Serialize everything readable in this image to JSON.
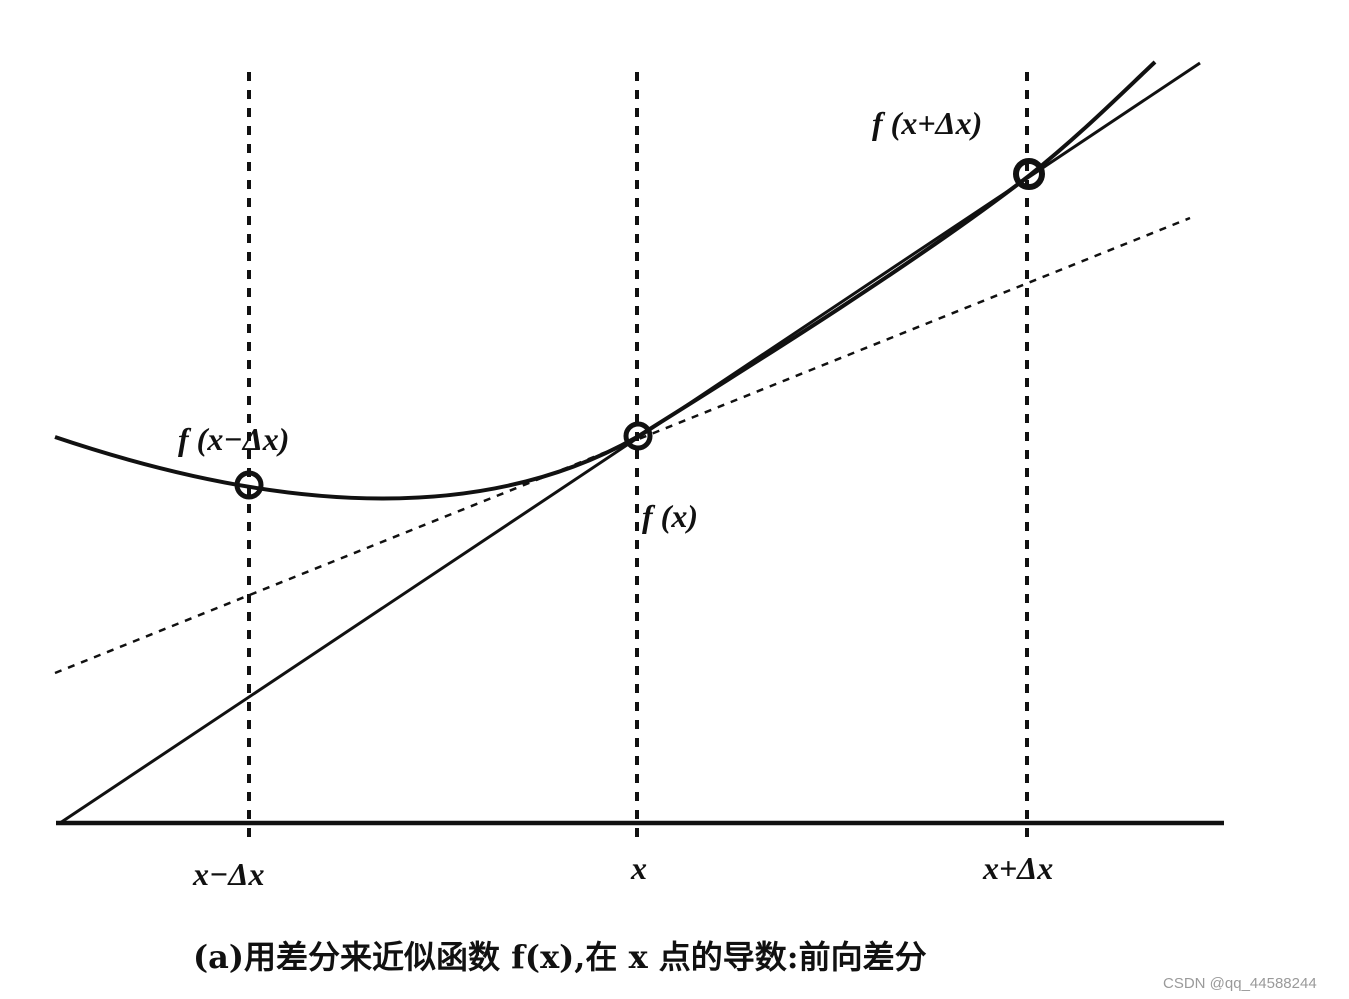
{
  "labels": {
    "f_minus": "f (x−Δx)",
    "f_center": "f (x)",
    "f_plus": "f (x+Δx)",
    "tick_minus": "x−Δx",
    "tick_center": "x",
    "tick_plus": "x+Δx"
  },
  "caption": "(a)用差分来近似函数 f(x),在 x 点的导数:前向差分",
  "watermark": "CSDN @qq_44588244",
  "colors": {
    "ink": "#111111",
    "background": "#ffffff",
    "watermark": "#9a9a9a"
  }
}
